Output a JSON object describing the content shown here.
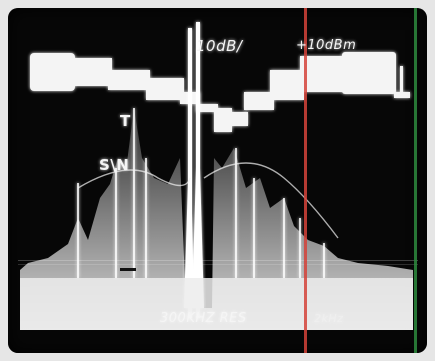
{
  "image": {
    "subject": "spectrum analyzer display",
    "trace_color": "#f2f2f2",
    "screen_color": "#070707",
    "cursor_colors": {
      "red": "#d4433a",
      "green": "#2e8b3e"
    }
  },
  "labels": {
    "ref_level": "10dB/",
    "scale": "+10dBm",
    "marker_T": "T",
    "marker_SN": "S\\N",
    "bandwidth": "300KHZ RES",
    "extra": "2kHz"
  }
}
